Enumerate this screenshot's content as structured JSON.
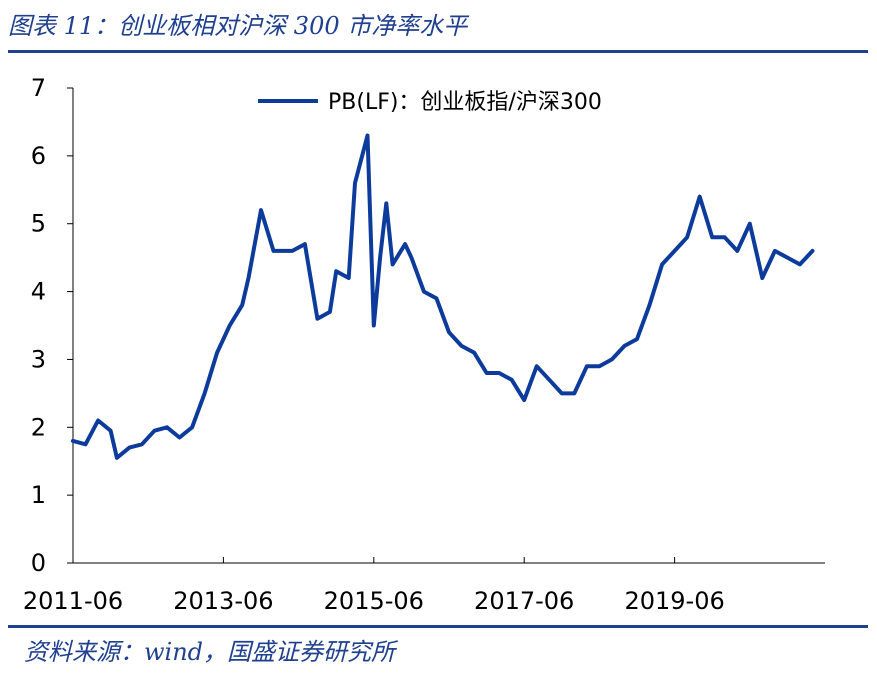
{
  "figure": {
    "title": "图表 11：创业板相对沪深 300 市净率水平",
    "source": "资料来源：wind，国盛证券研究所"
  },
  "colors": {
    "series": "#0d3b9c",
    "rule": "#1f3f8f"
  },
  "chart_data": {
    "type": "line",
    "title": "",
    "xlabel": "",
    "ylabel": "",
    "ylim": [
      0,
      7
    ],
    "yticks": [
      0,
      1,
      2,
      3,
      4,
      5,
      6,
      7
    ],
    "xlim": [
      "2011-06",
      "2021-06"
    ],
    "xticks": [
      "2011-06",
      "2013-06",
      "2015-06",
      "2017-06",
      "2019-06"
    ],
    "grid": false,
    "legend_position": "top-center",
    "series": [
      {
        "name": "PB(LF)：创业板指/沪深300",
        "x": [
          "2011-06",
          "2011-08",
          "2011-10",
          "2011-12",
          "2012-01",
          "2012-03",
          "2012-05",
          "2012-07",
          "2012-09",
          "2012-11",
          "2013-01",
          "2013-03",
          "2013-05",
          "2013-07",
          "2013-09",
          "2013-10",
          "2013-12",
          "2014-02",
          "2014-03",
          "2014-05",
          "2014-07",
          "2014-09",
          "2014-11",
          "2014-12",
          "2015-02",
          "2015-03",
          "2015-05",
          "2015-06",
          "2015-07",
          "2015-08",
          "2015-09",
          "2015-11",
          "2015-12",
          "2016-02",
          "2016-04",
          "2016-06",
          "2016-08",
          "2016-10",
          "2016-12",
          "2017-02",
          "2017-04",
          "2017-06",
          "2017-08",
          "2017-10",
          "2017-12",
          "2018-02",
          "2018-04",
          "2018-06",
          "2018-08",
          "2018-10",
          "2018-12",
          "2019-02",
          "2019-04",
          "2019-06",
          "2019-08",
          "2019-10",
          "2019-12",
          "2020-02",
          "2020-04",
          "2020-06",
          "2020-08",
          "2020-10",
          "2020-12",
          "2021-02",
          "2021-04"
        ],
        "values": [
          1.8,
          1.75,
          2.1,
          1.95,
          1.55,
          1.7,
          1.75,
          1.95,
          2.0,
          1.85,
          2.0,
          2.5,
          3.1,
          3.5,
          3.8,
          4.2,
          5.2,
          4.6,
          4.6,
          4.6,
          4.7,
          3.6,
          3.7,
          4.3,
          4.2,
          5.6,
          6.3,
          3.5,
          4.5,
          5.3,
          4.4,
          4.7,
          4.5,
          4.0,
          3.9,
          3.4,
          3.2,
          3.1,
          2.8,
          2.8,
          2.7,
          2.4,
          2.9,
          2.7,
          2.5,
          2.5,
          2.9,
          2.9,
          3.0,
          3.2,
          3.3,
          3.8,
          4.4,
          4.6,
          4.8,
          5.4,
          4.8,
          4.8,
          4.6,
          5.0,
          4.2,
          4.6,
          4.5,
          4.4,
          4.6
        ]
      }
    ]
  }
}
